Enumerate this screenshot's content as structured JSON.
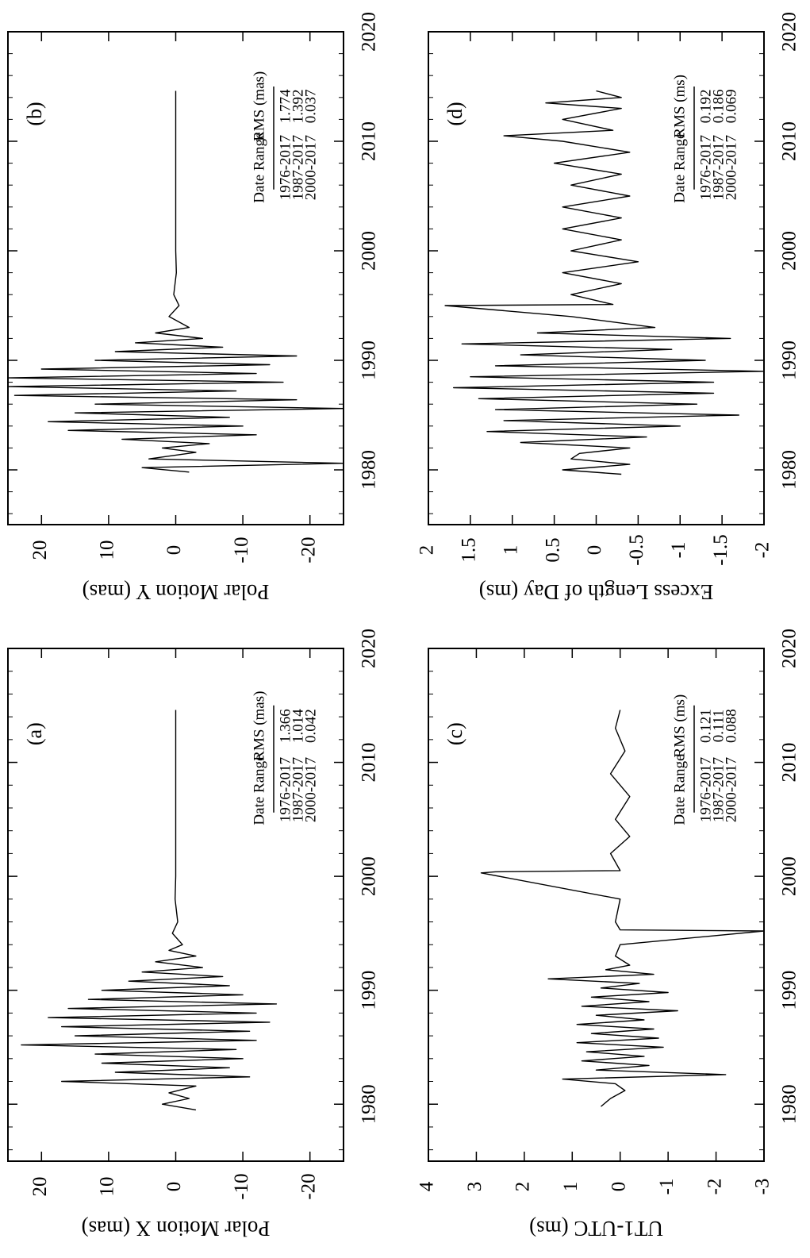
{
  "chart_data": [
    {
      "id": "a",
      "type": "line",
      "panel_label": "(a)",
      "ylabel": "Polar Motion X (mas)",
      "xlabel": "",
      "xlim": [
        1975,
        2020
      ],
      "ylim": [
        -25,
        25
      ],
      "xticks": [
        1980,
        1990,
        2000,
        2010,
        2020
      ],
      "yticks": [
        20,
        10,
        0,
        -10,
        -20
      ],
      "yticklabels": [
        "20",
        "10",
        "0",
        "-10",
        "-20"
      ],
      "rms_unit_header": "RMS (mas)",
      "table": {
        "headers": [
          "Date Range",
          "RMS (mas)"
        ],
        "rows": [
          [
            "1976-2017",
            "1.366"
          ],
          [
            "1987-2017",
            "1.014"
          ],
          [
            "2000-2017",
            "0.042"
          ]
        ]
      },
      "series": [
        {
          "x": [
            1979.5,
            1980.0,
            1980.5,
            1981.0,
            1981.6,
            1982.0,
            1982.4,
            1982.8,
            1983.2,
            1983.6,
            1984.0,
            1984.4,
            1984.8,
            1985.2,
            1985.6,
            1986.0,
            1986.4,
            1986.8,
            1987.2,
            1987.6,
            1988.0,
            1988.4,
            1988.8,
            1989.2,
            1989.6,
            1990.0,
            1990.4,
            1990.8,
            1991.2,
            1991.6,
            1992.0,
            1992.5,
            1993.0,
            1993.5,
            1994.0,
            1995.0,
            1996.0,
            1998.0,
            2000.0,
            2005.0,
            2010.0,
            2014.6
          ],
          "y": [
            -3,
            2,
            -2,
            1,
            -3,
            17,
            -11,
            9,
            -8,
            11,
            -10,
            12,
            -9,
            23,
            -12,
            15,
            -11,
            17,
            -14,
            19,
            -12,
            16,
            -15,
            13,
            -10,
            11,
            -8,
            7,
            -7,
            5,
            -4,
            3,
            -3,
            1,
            -1,
            0.5,
            -0.3,
            0.1,
            0,
            0,
            0,
            0
          ]
        }
      ]
    },
    {
      "id": "b",
      "type": "line",
      "panel_label": "(b)",
      "ylabel": "Polar Motion Y (mas)",
      "xlabel": "",
      "xlim": [
        1975,
        2020
      ],
      "ylim": [
        -25,
        25
      ],
      "xticks": [
        1980,
        1990,
        2000,
        2010,
        2020
      ],
      "yticks": [
        20,
        10,
        0,
        -10,
        -20
      ],
      "yticklabels": [
        "20",
        "10",
        "0",
        "-10",
        "-20"
      ],
      "table": {
        "headers": [
          "Date Range",
          "RMS (mas)"
        ],
        "rows": [
          [
            "1976-2017",
            "1.774"
          ],
          [
            "1987-2017",
            "1.392"
          ],
          [
            "2000-2017",
            "0.037"
          ]
        ]
      },
      "series": [
        {
          "x": [
            1979.8,
            1980.2,
            1980.6,
            1981.0,
            1981.6,
            1982.0,
            1982.4,
            1982.8,
            1983.2,
            1983.6,
            1984.0,
            1984.4,
            1984.8,
            1985.2,
            1985.6,
            1986.0,
            1986.4,
            1986.8,
            1987.2,
            1987.6,
            1988.0,
            1988.4,
            1988.8,
            1989.2,
            1989.6,
            1990.0,
            1990.4,
            1990.8,
            1991.2,
            1991.6,
            1992.0,
            1992.5,
            1993.0,
            1994.0,
            1995.0,
            1996.0,
            1998.0,
            2000.0,
            2005.0,
            2010.0,
            2014.6
          ],
          "y": [
            -2,
            5,
            -25,
            4,
            -3,
            2,
            -5,
            8,
            -12,
            16,
            -10,
            19,
            -8,
            15,
            -25,
            12,
            -18,
            24,
            -9,
            25,
            -16,
            25,
            -12,
            20,
            -14,
            12,
            -18,
            9,
            -7,
            6,
            -4,
            3,
            -2,
            1,
            -0.5,
            0.3,
            -0.1,
            0,
            0,
            0,
            0
          ]
        }
      ]
    },
    {
      "id": "c",
      "type": "line",
      "panel_label": "(c)",
      "ylabel": "UT1-UTC (ms)",
      "xlabel": "",
      "xlim": [
        1975,
        2020
      ],
      "ylim": [
        -3,
        4
      ],
      "xticks": [
        1980,
        1990,
        2000,
        2010,
        2020
      ],
      "yticks": [
        4,
        3,
        2,
        1,
        0,
        -1,
        -2,
        -3
      ],
      "yticklabels": [
        "4",
        "3",
        "2",
        "1",
        "0",
        "-1",
        "-2",
        "-3"
      ],
      "table": {
        "headers": [
          "Date Range",
          "RMS (ms)"
        ],
        "rows": [
          [
            "1976-2017",
            "0.121"
          ],
          [
            "1987-2017",
            "0.111"
          ],
          [
            "2000-2017",
            "0.088"
          ]
        ]
      },
      "series": [
        {
          "x": [
            1979.8,
            1980.5,
            1981.2,
            1981.8,
            1982.2,
            1982.6,
            1983.0,
            1983.4,
            1983.8,
            1984.2,
            1984.6,
            1985.0,
            1985.4,
            1985.8,
            1986.2,
            1986.6,
            1987.0,
            1987.4,
            1987.8,
            1988.2,
            1988.6,
            1989.0,
            1989.4,
            1989.8,
            1990.2,
            1990.6,
            1991.0,
            1991.4,
            1991.8,
            1992.2,
            1993.0,
            1994.0,
            1995.2,
            1995.3,
            1996.0,
            1998.0,
            2000.3,
            2000.4,
            2000.5,
            2002.0,
            2003.5,
            2005.0,
            2007.0,
            2009.0,
            2011.0,
            2013.0,
            2014.6
          ],
          "y": [
            0.4,
            0.2,
            -0.1,
            0.1,
            1.2,
            -2.2,
            0.5,
            -0.6,
            0.8,
            -0.5,
            0.7,
            -0.9,
            0.9,
            -0.8,
            0.6,
            -0.7,
            0.9,
            -0.5,
            0.5,
            -1.2,
            0.8,
            -0.6,
            0.6,
            -1.0,
            0.4,
            -0.4,
            1.5,
            -0.7,
            0.3,
            -0.2,
            0.1,
            0.0,
            -3.0,
            0.0,
            0.1,
            0.0,
            2.9,
            2.6,
            0.0,
            0.2,
            -0.2,
            0.1,
            -0.2,
            0.2,
            -0.1,
            0.1,
            0.0
          ]
        }
      ]
    },
    {
      "id": "d",
      "type": "line",
      "panel_label": "(d)",
      "ylabel": "Excess Length of Day (ms)",
      "xlabel": "",
      "xlim": [
        1975,
        2020
      ],
      "ylim": [
        -2,
        2
      ],
      "xticks": [
        1980,
        1990,
        2000,
        2010,
        2020
      ],
      "yticks": [
        2,
        1.5,
        1,
        0.5,
        0,
        -0.5,
        -1,
        -1.5,
        -2
      ],
      "yticklabels": [
        "2",
        "1.5",
        "1",
        "0.5",
        "0",
        "-0.5",
        "-1",
        "-1.5",
        "-2"
      ],
      "table": {
        "headers": [
          "Date Range",
          "RMS (ms)"
        ],
        "rows": [
          [
            "1976-2017",
            "0.192"
          ],
          [
            "1987-2017",
            "0.186"
          ],
          [
            "2000-2017",
            "0.069"
          ]
        ]
      },
      "series": [
        {
          "x": [
            1979.6,
            1980.0,
            1980.5,
            1981.0,
            1981.5,
            1982.0,
            1982.5,
            1983.0,
            1983.5,
            1984.0,
            1984.5,
            1985.0,
            1985.5,
            1986.0,
            1986.5,
            1987.0,
            1987.5,
            1988.0,
            1988.5,
            1989.0,
            1989.5,
            1990.0,
            1990.5,
            1991.0,
            1991.5,
            1992.0,
            1992.5,
            1993.0,
            1994.0,
            1995.0,
            1995.1,
            1996.0,
            1997.0,
            1998.0,
            1999.0,
            2000.0,
            2001.0,
            2002.0,
            2003.0,
            2004.0,
            2005.0,
            2006.0,
            2007.0,
            2008.0,
            2009.0,
            2010.0,
            2010.5,
            2011.0,
            2012.0,
            2013.0,
            2013.5,
            2014.0,
            2014.6
          ],
          "y": [
            -0.3,
            0.4,
            -0.4,
            0.3,
            0.2,
            -0.4,
            0.9,
            -0.6,
            1.3,
            -1.0,
            1.1,
            -1.7,
            1.2,
            -1.2,
            1.4,
            -1.4,
            1.7,
            -1.4,
            1.5,
            -2.0,
            1.2,
            -1.3,
            0.9,
            -0.9,
            1.6,
            -1.6,
            0.7,
            -0.7,
            0.3,
            1.8,
            -0.2,
            0.3,
            -0.3,
            0.4,
            -0.5,
            0.3,
            -0.3,
            0.4,
            -0.3,
            0.4,
            -0.4,
            0.3,
            -0.3,
            0.5,
            -0.4,
            0.4,
            1.1,
            -0.2,
            0.4,
            -0.3,
            0.6,
            -0.3,
            0.0
          ]
        }
      ]
    }
  ]
}
